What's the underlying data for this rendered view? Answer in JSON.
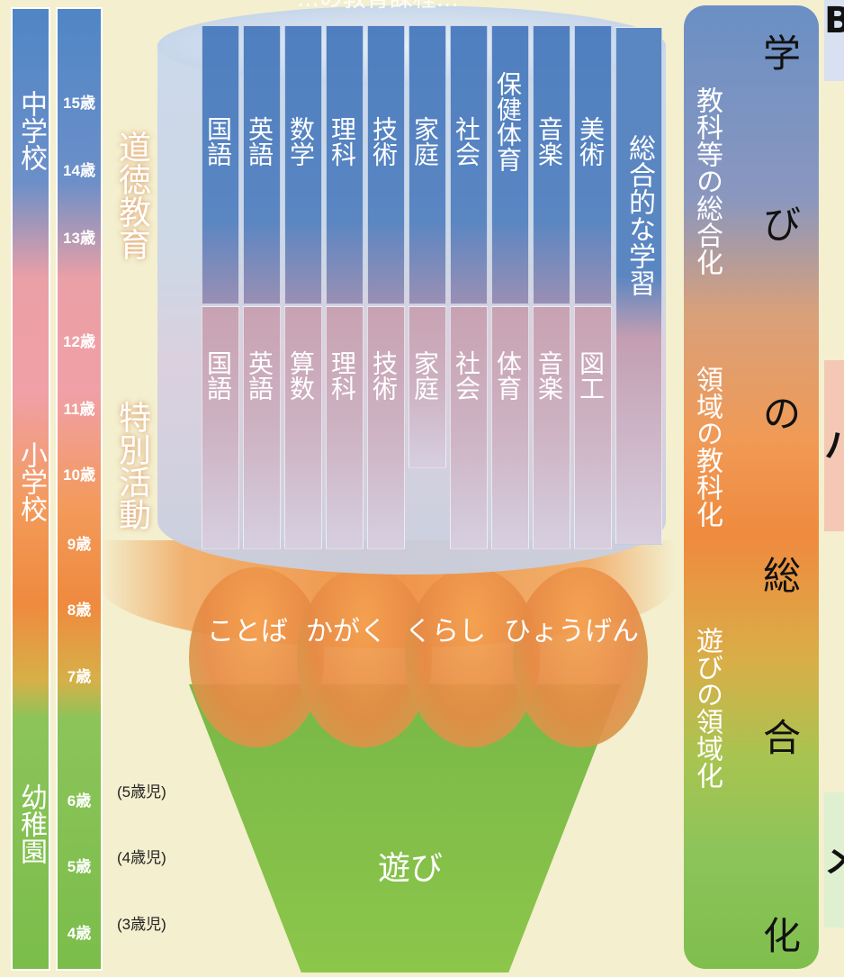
{
  "top_fragment": "...の教育課程...",
  "schools": {
    "junior_high": "中学校",
    "elementary": "小学校",
    "kindergarten": "幼稚園"
  },
  "ages": [
    "15歳",
    "14歳",
    "13歳",
    "12歳",
    "11歳",
    "10歳",
    "9歳",
    "8歳",
    "7歳",
    "6歳",
    "5歳",
    "4歳"
  ],
  "kinder_ages": [
    "(5歳児)",
    "(4歳児)",
    "(3歳児)"
  ],
  "side_labels": {
    "moral": "道徳教育",
    "special": "特別活動"
  },
  "subjects_upper": [
    "国語",
    "英語",
    "数学",
    "理科",
    "技術",
    "家庭",
    "社会",
    "保健体育",
    "音楽",
    "美術"
  ],
  "subjects_lower": [
    "国語",
    "英語",
    "算数",
    "理科",
    "技術",
    "家庭",
    "社会",
    "体育",
    "音楽",
    "図工"
  ],
  "integrated": "総合的な学習",
  "domains": [
    "ことば",
    "かがく",
    "くらし",
    "ひょうげん"
  ],
  "play": "遊び",
  "right_panel": {
    "title_chars": [
      "学",
      "び",
      "の",
      "総",
      "合",
      "化"
    ],
    "notes": {
      "integration_of_subjects": "教科等の総合化",
      "subjectification_of_domains": "領域の教科化",
      "domainization_of_play": "遊びの領域化"
    }
  },
  "edge_fragments": [
    "B",
    "ハ",
    "メ"
  ]
}
